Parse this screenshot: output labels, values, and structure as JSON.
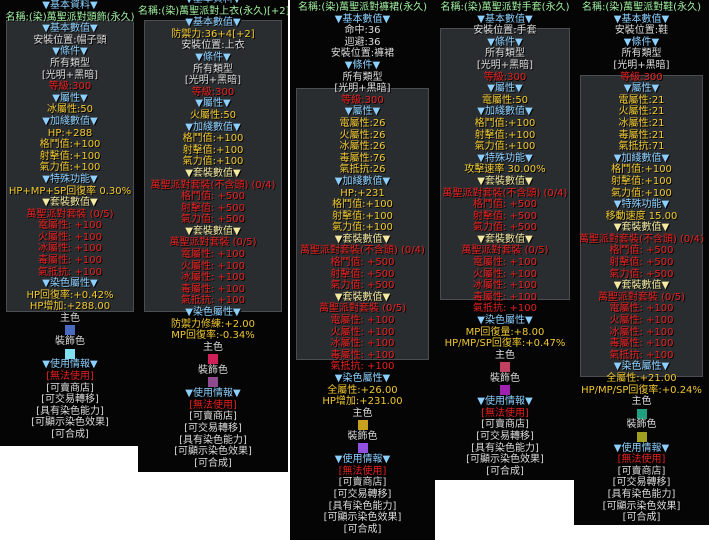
{
  "panels": [
    {
      "main_color": "#4a6ac0",
      "deco_color": "#80e0f0",
      "lines": [
        {
          "t": "▼基本資料▼",
          "c": "hb"
        },
        {
          "t": "名稱:(染)萬聖派對頭飾(永久)",
          "c": "nm"
        },
        {
          "t": "▼基本數值▼",
          "c": "hb"
        },
        {
          "t": "安裝位置:帽子頭",
          "c": "wt"
        },
        {
          "t": "▼條件▼",
          "c": "hb"
        },
        {
          "t": "所有類型",
          "c": "wt"
        },
        {
          "t": "[光明+黑暗]",
          "c": "wt"
        },
        {
          "t": "等級:300",
          "c": "rd"
        },
        {
          "t": "▼屬性▼",
          "c": "hb"
        },
        {
          "t": "冰屬性:50",
          "c": "yl"
        },
        {
          "t": "▼加綫數值▼",
          "c": "hb"
        },
        {
          "t": "HP:+288",
          "c": "yl"
        },
        {
          "t": "格鬥值:+100",
          "c": "yl"
        },
        {
          "t": "射擊值:+100",
          "c": "yl"
        },
        {
          "t": "氣力值:+100",
          "c": "yl"
        },
        {
          "t": "▼特殊功能▼",
          "c": "hb"
        },
        {
          "t": "HP+MP+SP回復率 0.30%",
          "c": "yl"
        },
        {
          "t": "▼套裝數值▼",
          "c": "hy"
        },
        {
          "t": "萬聖派對套裝 (0/5)",
          "c": "rd"
        },
        {
          "t": "電屬性: +100",
          "c": "rd"
        },
        {
          "t": "火屬性: +100",
          "c": "rd"
        },
        {
          "t": "冰屬性: +100",
          "c": "rd"
        },
        {
          "t": "毒屬性: +100",
          "c": "rd"
        },
        {
          "t": "氣抵抗: +100",
          "c": "rd"
        },
        {
          "t": "▼染色屬性▼",
          "c": "hb"
        },
        {
          "t": "HP回復率:+0.42%",
          "c": "yl"
        },
        {
          "t": "HP增加:+288.00",
          "c": "yl"
        },
        {
          "t": "主色",
          "c": "wt"
        },
        {
          "sw": "main"
        },
        {
          "t": "裝飾色",
          "c": "wt"
        },
        {
          "sw": "deco"
        },
        {
          "t": "▼使用情報▼",
          "c": "hb"
        },
        {
          "t": "[無法使用]",
          "c": "rd"
        },
        {
          "t": "[可賣商店]",
          "c": "wt"
        },
        {
          "t": "[可交易轉移]",
          "c": "wt"
        },
        {
          "t": "[具有染色能力]",
          "c": "wt"
        },
        {
          "t": "[可顯示染色效果]",
          "c": "wt"
        },
        {
          "t": "[可合成]",
          "c": "wt"
        }
      ]
    },
    {
      "main_color": "#d0205a",
      "deco_color": "#904a90",
      "lines": [
        {
          "t": "▼基本資料▼",
          "c": "hb"
        },
        {
          "t": "名稱:(染)萬聖派對上衣(永久)[+2]",
          "c": "nm"
        },
        {
          "t": "▼基本數值▼",
          "c": "hb"
        },
        {
          "t": "防禦力:36+4[+2]",
          "c": "yl"
        },
        {
          "t": "安裝位置:上衣",
          "c": "wt"
        },
        {
          "t": "▼條件▼",
          "c": "hb"
        },
        {
          "t": "所有類型",
          "c": "wt"
        },
        {
          "t": "[光明+黑暗]",
          "c": "wt"
        },
        {
          "t": "等級:300",
          "c": "rd"
        },
        {
          "t": "▼屬性▼",
          "c": "hb"
        },
        {
          "t": "火屬性:50",
          "c": "yl"
        },
        {
          "t": "▼加綫數值▼",
          "c": "hb"
        },
        {
          "t": "格鬥值:+100",
          "c": "yl"
        },
        {
          "t": "射擊值:+100",
          "c": "yl"
        },
        {
          "t": "氣力值:+100",
          "c": "yl"
        },
        {
          "t": "▼套裝數值▼",
          "c": "hy"
        },
        {
          "t": "萬聖派對套裝(不含頭) (0/4)",
          "c": "rd"
        },
        {
          "t": "格鬥值: +500",
          "c": "rd"
        },
        {
          "t": "射擊值: +500",
          "c": "rd"
        },
        {
          "t": "氣力值: +500",
          "c": "rd"
        },
        {
          "t": "▼套裝數值▼",
          "c": "hy"
        },
        {
          "t": "萬聖派對套裝 (0/5)",
          "c": "rd"
        },
        {
          "t": "電屬性: +100",
          "c": "rd"
        },
        {
          "t": "火屬性: +100",
          "c": "rd"
        },
        {
          "t": "冰屬性: +100",
          "c": "rd"
        },
        {
          "t": "毒屬性: +100",
          "c": "rd"
        },
        {
          "t": "氣抵抗: +100",
          "c": "rd"
        },
        {
          "t": "▼染色屬性▼",
          "c": "hb"
        },
        {
          "t": "防禦力修練:+2.00",
          "c": "yl"
        },
        {
          "t": "MP回復率:-0.34%",
          "c": "yl"
        },
        {
          "t": "主色",
          "c": "wt"
        },
        {
          "sw": "main"
        },
        {
          "t": "裝飾色",
          "c": "wt"
        },
        {
          "sw": "deco"
        },
        {
          "t": "▼使用情報▼",
          "c": "hb"
        },
        {
          "t": "[無法使用]",
          "c": "rd"
        },
        {
          "t": "[可賣商店]",
          "c": "wt"
        },
        {
          "t": "[可交易轉移]",
          "c": "wt"
        },
        {
          "t": "[具有染色能力]",
          "c": "wt"
        },
        {
          "t": "[可顯示染色效果]",
          "c": "wt"
        },
        {
          "t": "[可合成]",
          "c": "wt"
        }
      ]
    },
    {
      "main_color": "#c8a020",
      "deco_color": "#9050e0",
      "lines": [
        {
          "t": "名稱:(染)萬聖派對褲裙(永久)",
          "c": "nm"
        },
        {
          "t": "▼基本數值▼",
          "c": "hb"
        },
        {
          "t": "命中:36",
          "c": "wt"
        },
        {
          "t": "迴避:36",
          "c": "wt"
        },
        {
          "t": "安裝位置:褲裙",
          "c": "wt"
        },
        {
          "t": "▼條件▼",
          "c": "hb"
        },
        {
          "t": "所有類型",
          "c": "wt"
        },
        {
          "t": "[光明+黑暗]",
          "c": "wt"
        },
        {
          "t": "等級:300",
          "c": "rd"
        },
        {
          "t": "▼屬性▼",
          "c": "hb"
        },
        {
          "t": "電屬性:26",
          "c": "yl"
        },
        {
          "t": "火屬性:26",
          "c": "yl"
        },
        {
          "t": "冰屬性:26",
          "c": "yl"
        },
        {
          "t": "毒屬性:76",
          "c": "yl"
        },
        {
          "t": "氣抵抗:26",
          "c": "yl"
        },
        {
          "t": "▼加綫數值▼",
          "c": "hb"
        },
        {
          "t": "HP:+231",
          "c": "yl"
        },
        {
          "t": "格鬥值:+100",
          "c": "yl"
        },
        {
          "t": "射擊值:+100",
          "c": "yl"
        },
        {
          "t": "氣力值:+100",
          "c": "yl"
        },
        {
          "t": "▼套裝數值▼",
          "c": "hy"
        },
        {
          "t": "萬聖派對套裝(不含頭) (0/4)",
          "c": "rd"
        },
        {
          "t": "格鬥值: +500",
          "c": "rd"
        },
        {
          "t": "射擊值: +500",
          "c": "rd"
        },
        {
          "t": "氣力值: +500",
          "c": "rd"
        },
        {
          "t": "▼套裝數值▼",
          "c": "hy"
        },
        {
          "t": "萬聖派對套裝 (0/5)",
          "c": "rd"
        },
        {
          "t": "電屬性: +100",
          "c": "rd"
        },
        {
          "t": "火屬性: +100",
          "c": "rd"
        },
        {
          "t": "冰屬性: +100",
          "c": "rd"
        },
        {
          "t": "毒屬性: +100",
          "c": "rd"
        },
        {
          "t": "氣抵抗: +100",
          "c": "rd"
        },
        {
          "t": "▼染色屬性▼",
          "c": "hb"
        },
        {
          "t": "全屬性:+26.00",
          "c": "yl"
        },
        {
          "t": "HP增加:+231.00",
          "c": "yl"
        },
        {
          "t": "主色",
          "c": "wt"
        },
        {
          "sw": "main"
        },
        {
          "t": "裝飾色",
          "c": "wt"
        },
        {
          "sw": "deco"
        },
        {
          "t": "▼使用情報▼",
          "c": "hb"
        },
        {
          "t": "[無法使用]",
          "c": "rd"
        },
        {
          "t": "[可賣商店]",
          "c": "wt"
        },
        {
          "t": "[可交易轉移]",
          "c": "wt"
        },
        {
          "t": "[具有染色能力]",
          "c": "wt"
        },
        {
          "t": "[可顯示染色效果]",
          "c": "wt"
        },
        {
          "t": "[可合成]",
          "c": "wt"
        }
      ]
    },
    {
      "main_color": "#c04060",
      "deco_color": "#a020b0",
      "lines": [
        {
          "t": "名稱:(染)萬聖派對手套(永久)",
          "c": "nm"
        },
        {
          "t": "▼基本數值▼",
          "c": "hb"
        },
        {
          "t": "安裝位置:手套",
          "c": "wt"
        },
        {
          "t": "▼條件▼",
          "c": "hb"
        },
        {
          "t": "所有類型",
          "c": "wt"
        },
        {
          "t": "[光明+黑暗]",
          "c": "wt"
        },
        {
          "t": "等級:300",
          "c": "rd"
        },
        {
          "t": "▼屬性▼",
          "c": "hb"
        },
        {
          "t": "電屬性:50",
          "c": "yl"
        },
        {
          "t": "▼加綫數值▼",
          "c": "hb"
        },
        {
          "t": "格鬥值:+100",
          "c": "yl"
        },
        {
          "t": "射擊值:+100",
          "c": "yl"
        },
        {
          "t": "氣力值:+100",
          "c": "yl"
        },
        {
          "t": "▼特殊功能▼",
          "c": "hb"
        },
        {
          "t": "攻擊速率 30.00%",
          "c": "yl"
        },
        {
          "t": "▼套裝數值▼",
          "c": "hy"
        },
        {
          "t": "萬聖派對套裝(不含頭) (0/4)",
          "c": "rd"
        },
        {
          "t": "格鬥值: +500",
          "c": "rd"
        },
        {
          "t": "射擊值: +500",
          "c": "rd"
        },
        {
          "t": "氣力值: +500",
          "c": "rd"
        },
        {
          "t": "▼套裝數值▼",
          "c": "hy"
        },
        {
          "t": "萬聖派對套裝 (0/5)",
          "c": "rd"
        },
        {
          "t": "電屬性: +100",
          "c": "rd"
        },
        {
          "t": "火屬性: +100",
          "c": "rd"
        },
        {
          "t": "冰屬性: +100",
          "c": "rd"
        },
        {
          "t": "毒屬性: +100",
          "c": "rd"
        },
        {
          "t": "氣抵抗: +100",
          "c": "rd"
        },
        {
          "t": "▼染色屬性▼",
          "c": "hb"
        },
        {
          "t": "MP回復量:+8.00",
          "c": "yl"
        },
        {
          "t": "HP/MP/SP回復率:+0.47%",
          "c": "yl"
        },
        {
          "t": "主色",
          "c": "wt"
        },
        {
          "sw": "main"
        },
        {
          "t": "裝飾色",
          "c": "wt"
        },
        {
          "sw": "deco"
        },
        {
          "t": "▼使用情報▼",
          "c": "hb"
        },
        {
          "t": "[無法使用]",
          "c": "rd"
        },
        {
          "t": "[可賣商店]",
          "c": "wt"
        },
        {
          "t": "[可交易轉移]",
          "c": "wt"
        },
        {
          "t": "[具有染色能力]",
          "c": "wt"
        },
        {
          "t": "[可顯示染色效果]",
          "c": "wt"
        },
        {
          "t": "[可合成]",
          "c": "wt"
        }
      ]
    },
    {
      "main_color": "#20a080",
      "deco_color": "#a0a020",
      "lines": [
        {
          "t": "名稱:(染)萬聖派對鞋(永久)",
          "c": "nm"
        },
        {
          "t": "▼基本數值▼",
          "c": "hb"
        },
        {
          "t": "安裝位置:鞋",
          "c": "wt"
        },
        {
          "t": "▼條件▼",
          "c": "hb"
        },
        {
          "t": "所有類型",
          "c": "wt"
        },
        {
          "t": "[光明+黑暗]",
          "c": "wt"
        },
        {
          "t": "等級:300",
          "c": "rd"
        },
        {
          "t": "▼屬性▼",
          "c": "hb"
        },
        {
          "t": "電屬性:21",
          "c": "yl"
        },
        {
          "t": "火屬性:21",
          "c": "yl"
        },
        {
          "t": "冰屬性:21",
          "c": "yl"
        },
        {
          "t": "毒屬性:21",
          "c": "yl"
        },
        {
          "t": "氣抵抗:71",
          "c": "yl"
        },
        {
          "t": "▼加綫數值▼",
          "c": "hb"
        },
        {
          "t": "格鬥值:+100",
          "c": "yl"
        },
        {
          "t": "射擊值:+100",
          "c": "yl"
        },
        {
          "t": "氣力值:+100",
          "c": "yl"
        },
        {
          "t": "▼特殊功能▼",
          "c": "hb"
        },
        {
          "t": "移動速度 15.00",
          "c": "yl"
        },
        {
          "t": "▼套裝數值▼",
          "c": "hy"
        },
        {
          "t": "萬聖派對套裝(不含頭) (0/4)",
          "c": "rd"
        },
        {
          "t": "格鬥值: +500",
          "c": "rd"
        },
        {
          "t": "射擊值: +500",
          "c": "rd"
        },
        {
          "t": "氣力值: +500",
          "c": "rd"
        },
        {
          "t": "▼套裝數值▼",
          "c": "hy"
        },
        {
          "t": "萬聖派對套裝 (0/5)",
          "c": "rd"
        },
        {
          "t": "電屬性: +100",
          "c": "rd"
        },
        {
          "t": "火屬性: +100",
          "c": "rd"
        },
        {
          "t": "冰屬性: +100",
          "c": "rd"
        },
        {
          "t": "毒屬性: +100",
          "c": "rd"
        },
        {
          "t": "氣抵抗: +100",
          "c": "rd"
        },
        {
          "t": "▼染色屬性▼",
          "c": "hb"
        },
        {
          "t": "全屬性:+21.00",
          "c": "yl"
        },
        {
          "t": "HP/MP/SP回復率:+0.24%",
          "c": "yl"
        },
        {
          "t": "主色",
          "c": "wt"
        },
        {
          "sw": "main"
        },
        {
          "t": "裝飾色",
          "c": "wt"
        },
        {
          "sw": "deco"
        },
        {
          "t": "▼使用情報▼",
          "c": "hb"
        },
        {
          "t": "[無法使用]",
          "c": "rd"
        },
        {
          "t": "[可賣商店]",
          "c": "wt"
        },
        {
          "t": "[可交易轉移]",
          "c": "wt"
        },
        {
          "t": "[具有染色能力]",
          "c": "wt"
        },
        {
          "t": "[可顯示染色效果]",
          "c": "wt"
        },
        {
          "t": "[可合成]",
          "c": "wt"
        }
      ]
    }
  ]
}
